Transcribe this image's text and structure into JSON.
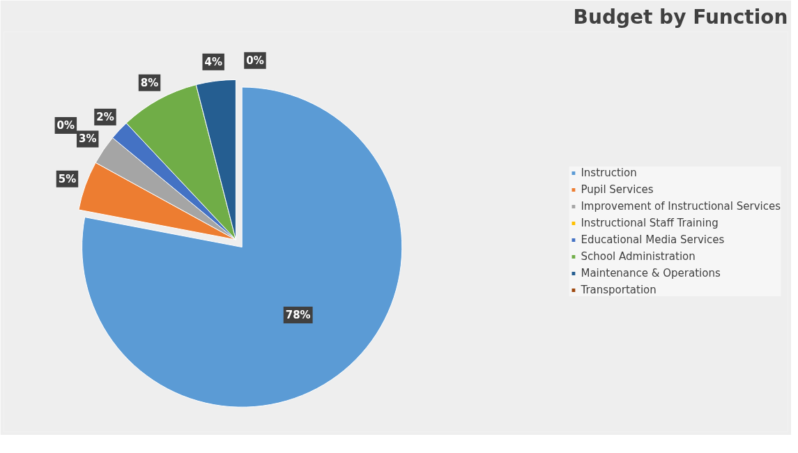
{
  "chart_data": {
    "type": "pie",
    "title": "Budget by Function",
    "categories": [
      "Instruction",
      "Pupil Services",
      "Improvement of Instructional Services",
      "Instructional Staff Training",
      "Educational Media Services",
      "School Administration",
      "Maintenance & Operations",
      "Transportation"
    ],
    "values": [
      78,
      5,
      3,
      0,
      2,
      8,
      4,
      0
    ],
    "colors": [
      "#5b9bd5",
      "#ed7d31",
      "#a5a5a5",
      "#ffc000",
      "#4472c4",
      "#70ad47",
      "#255e91",
      "#9e480e"
    ],
    "value_labels": [
      "78%",
      "5%",
      "3%",
      "0%",
      "2%",
      "8%",
      "4%",
      "0%"
    ],
    "legend": "right"
  }
}
